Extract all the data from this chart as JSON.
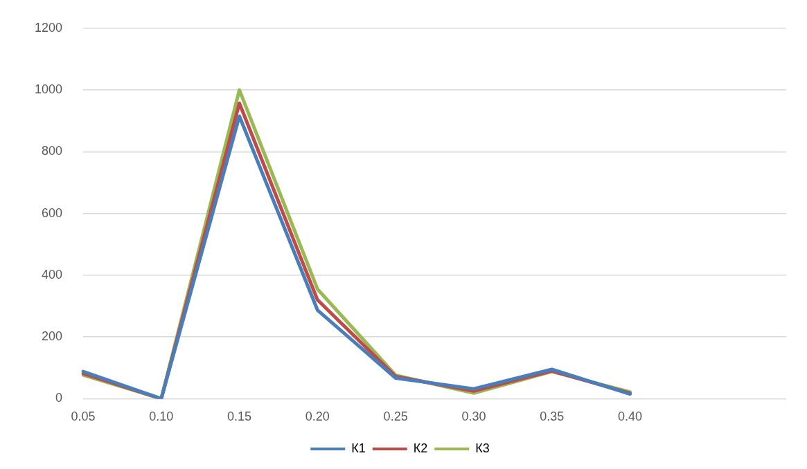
{
  "chart_data": {
    "type": "line",
    "categories": [
      "0.05",
      "0.10",
      "0.15",
      "0.20",
      "0.25",
      "0.30",
      "0.35",
      "0.40",
      null,
      null
    ],
    "series": [
      {
        "name": "К1",
        "color": "#4a7ebb",
        "values": [
          88,
          0,
          915,
          287,
          67,
          32,
          95,
          15,
          null,
          null
        ]
      },
      {
        "name": "К2",
        "color": "#be4b48",
        "values": [
          82,
          0,
          957,
          320,
          72,
          25,
          90,
          18,
          null,
          null
        ]
      },
      {
        "name": "К3",
        "color": "#98b954",
        "values": [
          77,
          0,
          1000,
          355,
          76,
          18,
          88,
          22,
          null,
          null
        ]
      }
    ],
    "ylim": [
      0,
      1200
    ],
    "yticks": [
      0,
      200,
      400,
      600,
      800,
      1000,
      1200
    ],
    "grid": "y",
    "legend": "bottom",
    "marker": "none",
    "line_style": "solid"
  }
}
